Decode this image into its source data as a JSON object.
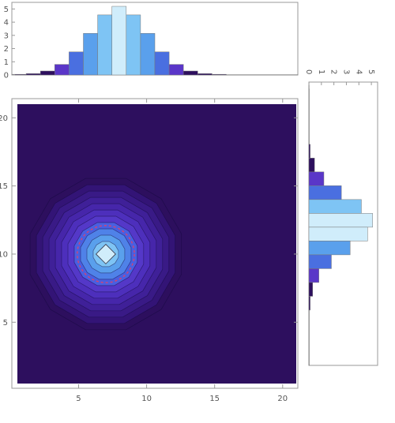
{
  "chart_data": [
    {
      "type": "bar",
      "role": "x-marginal-histogram",
      "bins": [
        {
          "x0": 0.5,
          "x1": 1.5,
          "value": 0.05
        },
        {
          "x0": 1.5,
          "x1": 2.5,
          "value": 0.1
        },
        {
          "x0": 2.5,
          "x1": 3.5,
          "value": 0.3
        },
        {
          "x0": 3.5,
          "x1": 4.5,
          "value": 0.8
        },
        {
          "x0": 4.5,
          "x1": 5.5,
          "value": 1.75
        },
        {
          "x0": 5.5,
          "x1": 6.5,
          "value": 3.15
        },
        {
          "x0": 6.5,
          "x1": 7.5,
          "value": 4.55
        },
        {
          "x0": 7.5,
          "x1": 8.5,
          "value": 5.2
        },
        {
          "x0": 8.5,
          "x1": 9.5,
          "value": 4.55
        },
        {
          "x0": 9.5,
          "x1": 10.5,
          "value": 3.15
        },
        {
          "x0": 10.5,
          "x1": 11.5,
          "value": 1.75
        },
        {
          "x0": 11.5,
          "x1": 12.5,
          "value": 0.8
        },
        {
          "x0": 12.5,
          "x1": 13.5,
          "value": 0.3
        },
        {
          "x0": 13.5,
          "x1": 14.5,
          "value": 0.1
        },
        {
          "x0": 14.5,
          "x1": 15.5,
          "value": 0.05
        },
        {
          "x0": 15.5,
          "x1": 20.5,
          "value": 0.02
        }
      ],
      "xlim": [
        0.5,
        20.5
      ],
      "ylim": [
        0,
        5.5
      ],
      "yticks": [
        "0",
        "1",
        "2",
        "3",
        "4",
        "5"
      ],
      "title": "",
      "xlabel": "",
      "ylabel": ""
    },
    {
      "type": "heatmap",
      "role": "contour-plot",
      "center": {
        "x": 7,
        "y": 10
      },
      "contour_levels": 12,
      "dashed_contour_radius": 2.1,
      "xlim": [
        0.5,
        21
      ],
      "ylim": [
        0.5,
        21
      ],
      "xticks": [
        "5",
        "10",
        "15",
        "20"
      ],
      "yticks": [
        "5",
        "10",
        "15",
        "20"
      ],
      "title": "",
      "xlabel": "",
      "ylabel": ""
    },
    {
      "type": "bar",
      "role": "y-marginal-histogram",
      "orientation": "horizontal",
      "bins": [
        {
          "y0": 20.5,
          "y1": 21,
          "value": 0.02
        },
        {
          "y0": 16.5,
          "y1": 20.5,
          "value": 0.03
        },
        {
          "y0": 15.5,
          "y1": 16.5,
          "value": 0.1
        },
        {
          "y0": 14.5,
          "y1": 15.5,
          "value": 0.45
        },
        {
          "y0": 13.5,
          "y1": 14.5,
          "value": 1.2
        },
        {
          "y0": 12.5,
          "y1": 13.5,
          "value": 2.6
        },
        {
          "y0": 11.5,
          "y1": 12.5,
          "value": 4.2
        },
        {
          "y0": 10.5,
          "y1": 11.5,
          "value": 5.1
        },
        {
          "y0": 9.5,
          "y1": 10.5,
          "value": 4.7
        },
        {
          "y0": 8.5,
          "y1": 9.5,
          "value": 3.3
        },
        {
          "y0": 7.5,
          "y1": 8.5,
          "value": 1.8
        },
        {
          "y0": 6.5,
          "y1": 7.5,
          "value": 0.8
        },
        {
          "y0": 5.5,
          "y1": 6.5,
          "value": 0.3
        },
        {
          "y0": 4.5,
          "y1": 5.5,
          "value": 0.1
        },
        {
          "y0": 0.5,
          "y1": 4.5,
          "value": 0.03
        }
      ],
      "ylim": [
        0.5,
        21
      ],
      "xlim": [
        0,
        5.5
      ],
      "xticks": [
        "0",
        "1",
        "2",
        "3",
        "4",
        "5"
      ],
      "title": "",
      "xlabel": "",
      "ylabel": ""
    }
  ],
  "colors": {
    "palette": [
      "#2d0f5e",
      "#3b1a8a",
      "#5a36c8",
      "#4a6fe0",
      "#5aa0ec",
      "#7ec4f4",
      "#d0edfb"
    ],
    "background": "#2d0f5e",
    "dashed_contour": "#e0406a",
    "frame": "#999999"
  }
}
